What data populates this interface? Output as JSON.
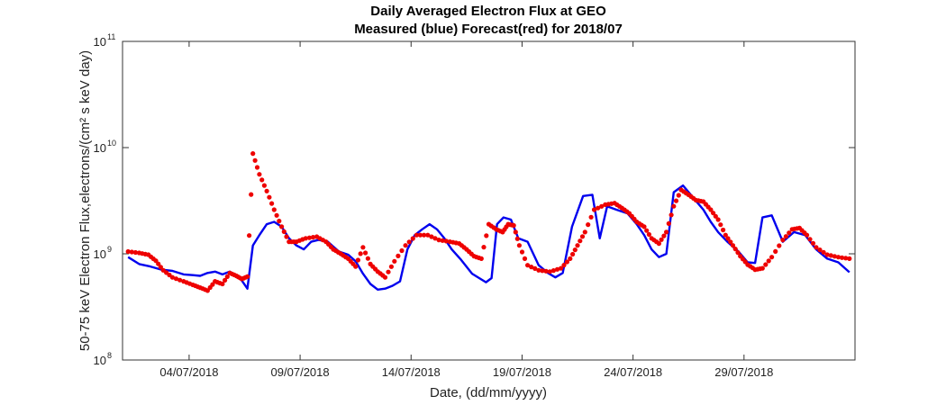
{
  "chart_data": {
    "type": "line",
    "title": "Daily Averaged Electron Flux at GEO",
    "subtitle": "Measured (blue) Forecast(red) for 2018/07",
    "xlabel": "Date, (dd/mm/yyyy)",
    "ylabel": "50-75 keV Electron Flux,electrons/(cm² s keV day)",
    "x_axis": {
      "type": "date",
      "range": [
        "2018-07-01",
        "2018-08-03"
      ],
      "tick_labels": [
        "04/07/2018",
        "09/07/2018",
        "14/07/2018",
        "19/07/2018",
        "24/07/2018",
        "29/07/2018"
      ],
      "tick_dates": [
        "2018-07-04",
        "2018-07-09",
        "2018-07-14",
        "2018-07-19",
        "2018-07-24",
        "2018-07-29"
      ]
    },
    "y_axis": {
      "scale": "log",
      "range": [
        100000000.0,
        100000000000.0
      ],
      "ticks": [
        {
          "value": 100000000.0,
          "base": "10",
          "exp": "8"
        },
        {
          "value": 1000000000.0,
          "base": "10",
          "exp": "9"
        },
        {
          "value": 10000000000.0,
          "base": "10",
          "exp": "10"
        },
        {
          "value": 100000000000.0,
          "base": "10",
          "exp": "11"
        }
      ]
    },
    "grid": false,
    "colors": {
      "measured": "#0000ee",
      "forecast": "#ee0000"
    },
    "series": [
      {
        "style": "line",
        "color": "#0000ee",
        "points": [
          [
            "2018-07-01",
            930000000.0
          ],
          [
            "2018-07-01",
            800000000.0
          ],
          [
            "2018-07-02",
            760000000.0
          ],
          [
            "2018-07-02",
            710000000.0
          ],
          [
            "2018-07-03",
            690000000.0
          ],
          [
            "2018-07-03",
            640000000.0
          ],
          [
            "2018-07-04",
            630000000.0
          ],
          [
            "2018-07-04",
            620000000.0
          ],
          [
            "2018-07-04",
            660000000.0
          ],
          [
            "2018-07-05",
            680000000.0
          ],
          [
            "2018-07-05",
            640000000.0
          ],
          [
            "2018-07-05",
            680000000.0
          ],
          [
            "2018-07-06",
            620000000.0
          ],
          [
            "2018-07-06",
            560000000.0
          ],
          [
            "2018-07-06",
            470000000.0
          ],
          [
            "2018-07-06",
            1200000000.0
          ],
          [
            "2018-07-07",
            1500000000.0
          ],
          [
            "2018-07-07",
            1900000000.0
          ],
          [
            "2018-07-07",
            2000000000.0
          ],
          [
            "2018-07-08",
            1800000000.0
          ],
          [
            "2018-07-08",
            1400000000.0
          ],
          [
            "2018-07-08",
            1200000000.0
          ],
          [
            "2018-07-09",
            1100000000.0
          ],
          [
            "2018-07-09",
            1300000000.0
          ],
          [
            "2018-07-09",
            1350000000.0
          ],
          [
            "2018-07-10",
            1300000000.0
          ],
          [
            "2018-07-10",
            1050000000.0
          ],
          [
            "2018-07-11",
            980000000.0
          ],
          [
            "2018-07-11",
            850000000.0
          ],
          [
            "2018-07-11",
            650000000.0
          ],
          [
            "2018-07-12",
            520000000.0
          ],
          [
            "2018-07-12",
            460000000.0
          ],
          [
            "2018-07-12",
            470000000.0
          ],
          [
            "2018-07-13",
            500000000.0
          ],
          [
            "2018-07-13",
            550000000.0
          ],
          [
            "2018-07-13",
            1100000000.0
          ],
          [
            "2018-07-14",
            1500000000.0
          ],
          [
            "2018-07-14",
            1700000000.0
          ],
          [
            "2018-07-14",
            1900000000.0
          ],
          [
            "2018-07-15",
            1700000000.0
          ],
          [
            "2018-07-15",
            1400000000.0
          ],
          [
            "2018-07-15",
            1100000000.0
          ],
          [
            "2018-07-16",
            880000000.0
          ],
          [
            "2018-07-16",
            650000000.0
          ],
          [
            "2018-07-17",
            580000000.0
          ],
          [
            "2018-07-17",
            540000000.0
          ],
          [
            "2018-07-17",
            590000000.0
          ],
          [
            "2018-07-17",
            1900000000.0
          ],
          [
            "2018-07-18",
            2200000000.0
          ],
          [
            "2018-07-18",
            2100000000.0
          ],
          [
            "2018-07-18",
            1400000000.0
          ],
          [
            "2018-07-19",
            1300000000.0
          ],
          [
            "2018-07-19",
            780000000.0
          ],
          [
            "2018-07-20",
            660000000.0
          ],
          [
            "2018-07-20",
            600000000.0
          ],
          [
            "2018-07-20",
            660000000.0
          ],
          [
            "2018-07-21",
            1800000000.0
          ],
          [
            "2018-07-21",
            3500000000.0
          ],
          [
            "2018-07-22",
            3600000000.0
          ],
          [
            "2018-07-22",
            1400000000.0
          ],
          [
            "2018-07-22",
            2800000000.0
          ],
          [
            "2018-07-23",
            2600000000.0
          ],
          [
            "2018-07-23",
            2400000000.0
          ],
          [
            "2018-07-24",
            1900000000.0
          ],
          [
            "2018-07-24",
            1500000000.0
          ],
          [
            "2018-07-24",
            1100000000.0
          ],
          [
            "2018-07-25",
            930000000.0
          ],
          [
            "2018-07-25",
            1000000000.0
          ],
          [
            "2018-07-25",
            3800000000.0
          ],
          [
            "2018-07-26",
            4400000000.0
          ],
          [
            "2018-07-26",
            3300000000.0
          ],
          [
            "2018-07-27",
            2600000000.0
          ],
          [
            "2018-07-27",
            2000000000.0
          ],
          [
            "2018-07-27",
            1600000000.0
          ],
          [
            "2018-07-28",
            1300000000.0
          ],
          [
            "2018-07-28",
            1050000000.0
          ],
          [
            "2018-07-29",
            830000000.0
          ],
          [
            "2018-07-29",
            820000000.0
          ],
          [
            "2018-07-29",
            2200000000.0
          ],
          [
            "2018-07-30",
            2300000000.0
          ],
          [
            "2018-07-30",
            1300000000.0
          ],
          [
            "2018-07-31",
            1600000000.0
          ],
          [
            "2018-07-31",
            1500000000.0
          ],
          [
            "2018-08-01",
            1100000000.0
          ],
          [
            "2018-08-01",
            900000000.0
          ],
          [
            "2018-08-02",
            830000000.0
          ],
          [
            "2018-08-02",
            670000000.0
          ]
        ]
      },
      {
        "style": "markers",
        "color": "#ee0000",
        "points": [
          [
            "2018-07-01",
            1050000000.0
          ],
          [
            "2018-07-01",
            1020000000.0
          ],
          [
            "2018-07-02",
            980000000.0
          ],
          [
            "2018-07-02",
            860000000.0
          ],
          [
            "2018-07-02",
            700000000.0
          ],
          [
            "2018-07-03",
            600000000.0
          ],
          [
            "2018-07-03",
            550000000.0
          ],
          [
            "2018-07-04",
            510000000.0
          ],
          [
            "2018-07-04",
            480000000.0
          ],
          [
            "2018-07-04",
            450000000.0
          ],
          [
            "2018-07-05",
            550000000.0
          ],
          [
            "2018-07-05",
            520000000.0
          ],
          [
            "2018-07-05",
            660000000.0
          ],
          [
            "2018-07-06",
            620000000.0
          ],
          [
            "2018-07-06",
            580000000.0
          ],
          [
            "2018-07-06",
            610000000.0
          ],
          [
            "2018-07-06",
            8800000000.0
          ],
          [
            "2018-07-07",
            5600000000.0
          ],
          [
            "2018-07-07",
            3900000000.0
          ],
          [
            "2018-07-07",
            2600000000.0
          ],
          [
            "2018-07-08",
            1800000000.0
          ],
          [
            "2018-07-08",
            1300000000.0
          ],
          [
            "2018-07-08",
            1300000000.0
          ],
          [
            "2018-07-09",
            1400000000.0
          ],
          [
            "2018-07-09",
            1450000000.0
          ],
          [
            "2018-07-10",
            1300000000.0
          ],
          [
            "2018-07-10",
            1100000000.0
          ],
          [
            "2018-07-10",
            1000000000.0
          ],
          [
            "2018-07-11",
            900000000.0
          ],
          [
            "2018-07-11",
            760000000.0
          ],
          [
            "2018-07-11",
            1150000000.0
          ],
          [
            "2018-07-12",
            800000000.0
          ],
          [
            "2018-07-12",
            680000000.0
          ],
          [
            "2018-07-12",
            600000000.0
          ],
          [
            "2018-07-13",
            850000000.0
          ],
          [
            "2018-07-13",
            1200000000.0
          ],
          [
            "2018-07-14",
            1500000000.0
          ],
          [
            "2018-07-14",
            1500000000.0
          ],
          [
            "2018-07-15",
            1350000000.0
          ],
          [
            "2018-07-15",
            1300000000.0
          ],
          [
            "2018-07-16",
            1250000000.0
          ],
          [
            "2018-07-16",
            1100000000.0
          ],
          [
            "2018-07-16",
            950000000.0
          ],
          [
            "2018-07-17",
            900000000.0
          ],
          [
            "2018-07-17",
            1900000000.0
          ],
          [
            "2018-07-17",
            1700000000.0
          ],
          [
            "2018-07-18",
            1600000000.0
          ],
          [
            "2018-07-18",
            1900000000.0
          ],
          [
            "2018-07-18",
            1850000000.0
          ],
          [
            "2018-07-18",
            1200000000.0
          ],
          [
            "2018-07-19",
            780000000.0
          ],
          [
            "2018-07-19",
            700000000.0
          ],
          [
            "2018-07-20",
            680000000.0
          ],
          [
            "2018-07-20",
            730000000.0
          ],
          [
            "2018-07-21",
            900000000.0
          ],
          [
            "2018-07-21",
            1200000000.0
          ],
          [
            "2018-07-21",
            1600000000.0
          ],
          [
            "2018-07-22",
            2600000000.0
          ],
          [
            "2018-07-22",
            2900000000.0
          ],
          [
            "2018-07-23",
            3000000000.0
          ],
          [
            "2018-07-23",
            2700000000.0
          ],
          [
            "2018-07-23",
            2400000000.0
          ],
          [
            "2018-07-24",
            2000000000.0
          ],
          [
            "2018-07-24",
            1800000000.0
          ],
          [
            "2018-07-24",
            1400000000.0
          ],
          [
            "2018-07-25",
            1250000000.0
          ],
          [
            "2018-07-25",
            1600000000.0
          ],
          [
            "2018-07-25",
            2800000000.0
          ],
          [
            "2018-07-26",
            4000000000.0
          ],
          [
            "2018-07-26",
            3600000000.0
          ],
          [
            "2018-07-26",
            3200000000.0
          ],
          [
            "2018-07-27",
            3100000000.0
          ],
          [
            "2018-07-27",
            2600000000.0
          ],
          [
            "2018-07-27",
            2100000000.0
          ],
          [
            "2018-07-28",
            1500000000.0
          ],
          [
            "2018-07-28",
            1200000000.0
          ],
          [
            "2018-07-28",
            950000000.0
          ],
          [
            "2018-07-29",
            790000000.0
          ],
          [
            "2018-07-29",
            710000000.0
          ],
          [
            "2018-07-29",
            730000000.0
          ],
          [
            "2018-07-30",
            930000000.0
          ],
          [
            "2018-07-30",
            1350000000.0
          ],
          [
            "2018-07-31",
            1700000000.0
          ],
          [
            "2018-07-31",
            1750000000.0
          ],
          [
            "2018-07-31",
            1500000000.0
          ],
          [
            "2018-08-01",
            1150000000.0
          ],
          [
            "2018-08-01",
            980000000.0
          ],
          [
            "2018-08-02",
            930000000.0
          ],
          [
            "2018-08-02",
            900000000.0
          ]
        ]
      }
    ]
  }
}
